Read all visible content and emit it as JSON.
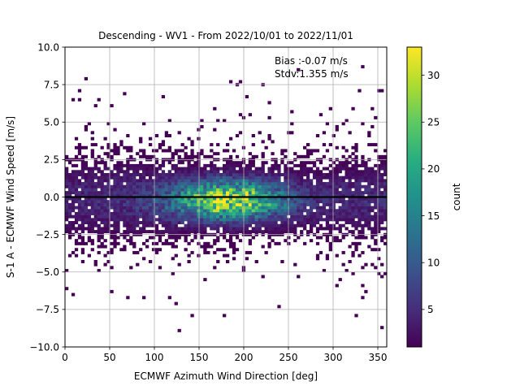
{
  "chart_data": {
    "type": "heatmap",
    "title": "Descending - WV1 - From 2022/10/01 to 2022/11/01",
    "xlabel": "ECMWF Azimuth Wind Direction [deg]",
    "ylabel": "S-1 A - ECMWF Wind Speed [m/s]",
    "xlim": [
      0,
      360
    ],
    "ylim": [
      -10,
      10
    ],
    "xticks": [
      "0",
      "50",
      "100",
      "150",
      "200",
      "250",
      "300",
      "350"
    ],
    "yticks": [
      "−10.0",
      "−7.5",
      "−5.0",
      "−2.5",
      "0.0",
      "2.5",
      "5.0",
      "7.5",
      "10.0"
    ],
    "grid": true,
    "annotations": [
      "Bias :-0.07 m/s",
      "Stdv:1.355 m/s"
    ],
    "reference_line_y": 0.0,
    "colorbar": {
      "label": "count",
      "colormap": "viridis",
      "range": [
        1,
        33
      ],
      "ticks": [
        "5",
        "10",
        "15",
        "20",
        "25",
        "30"
      ]
    },
    "density_peak": {
      "x": 185,
      "y": -0.2,
      "count": 33
    },
    "bin_size": {
      "x": 3.6,
      "y": 0.2
    }
  }
}
